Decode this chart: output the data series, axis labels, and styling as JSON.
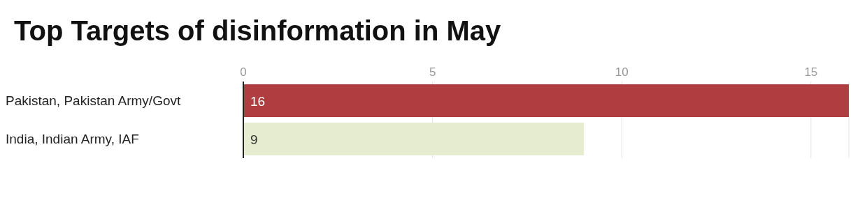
{
  "chart_data": {
    "type": "bar",
    "title": "Top Targets of disinformation in May",
    "orientation": "horizontal",
    "categories": [
      "Pakistan, Pakistan Army/Govt",
      "India, Indian Army, IAF"
    ],
    "values": [
      16,
      9
    ],
    "colors": [
      "#b03d3f",
      "#e6ecd0"
    ],
    "xlim": [
      0,
      16
    ],
    "xticks": [
      0,
      5,
      10,
      15
    ],
    "grid": "x",
    "data_labels": true
  }
}
